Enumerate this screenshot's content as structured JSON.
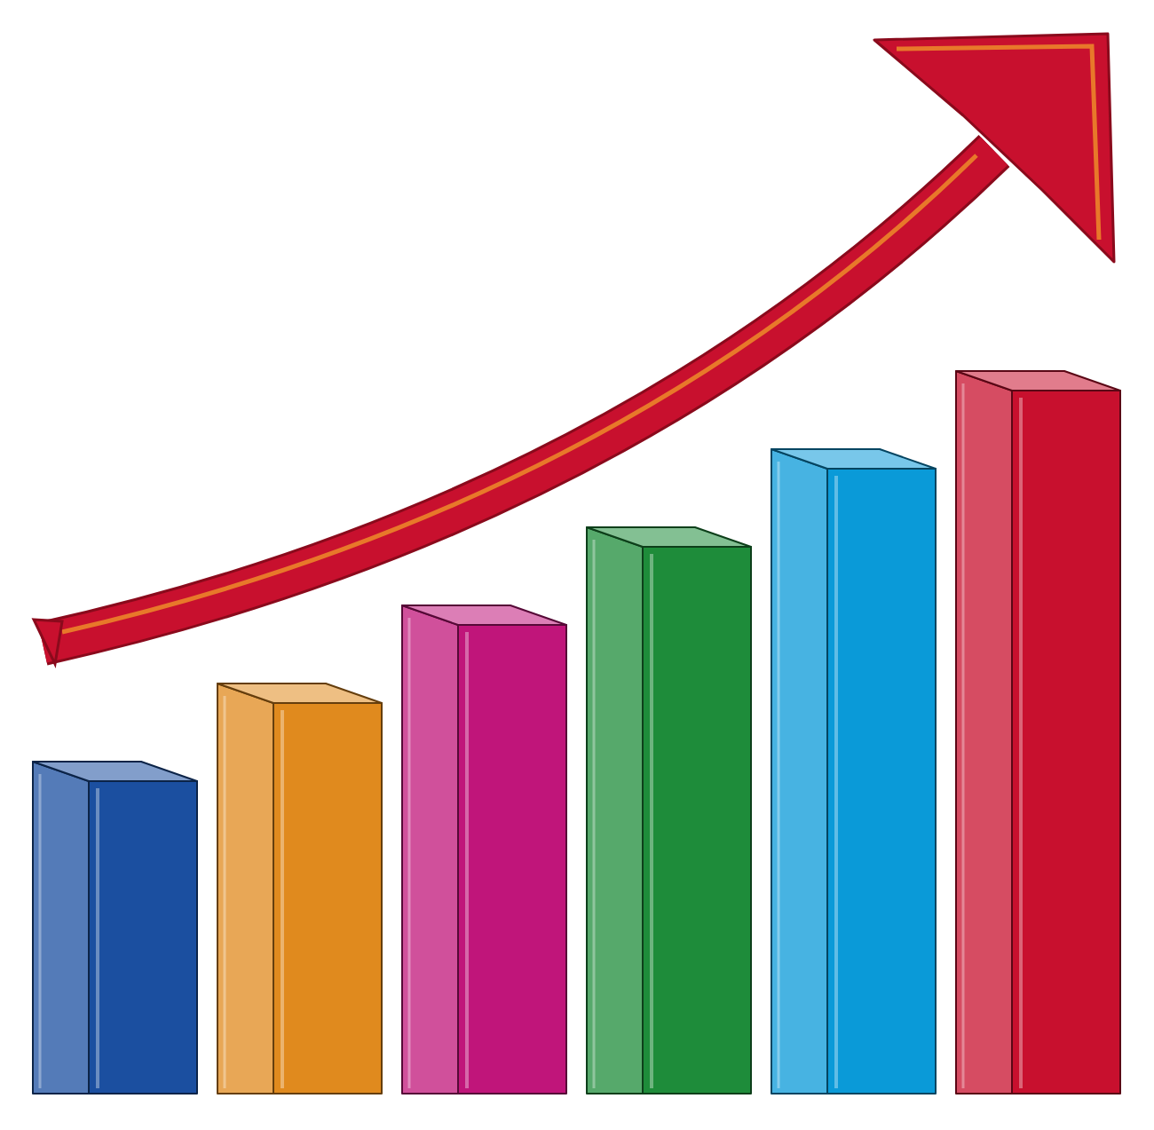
{
  "chart_data": {
    "type": "bar",
    "categories": [
      null,
      null,
      null,
      null,
      null,
      null
    ],
    "values": [
      44,
      55,
      66,
      77,
      88,
      99
    ],
    "colors": [
      "#1b4fa0",
      "#e08a1e",
      "#c0157a",
      "#1e8c3a",
      "#0a9ad8",
      "#c8102e"
    ],
    "ylim": [
      0,
      100
    ],
    "tick_labels": false
  }
}
